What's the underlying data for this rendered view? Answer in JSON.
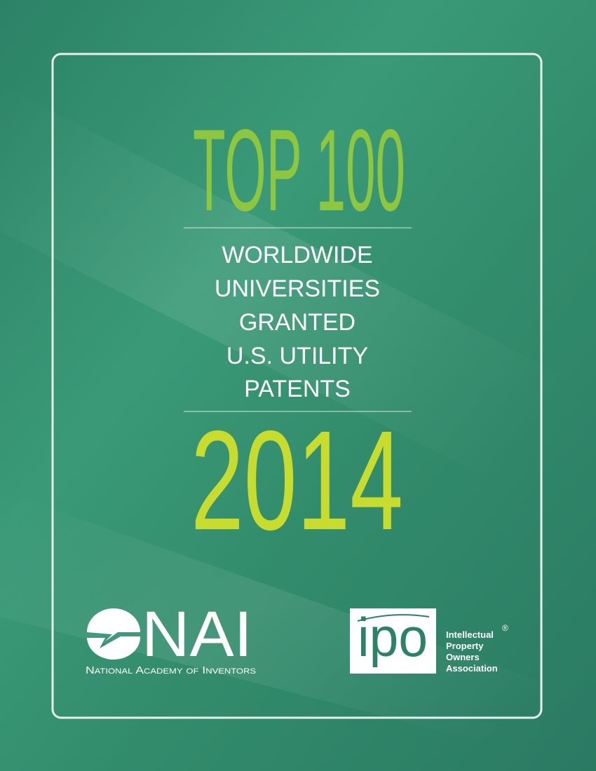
{
  "cover": {
    "title": "TOP 100",
    "subtitle_lines": [
      "WORLDWIDE",
      "UNIVERSITIES",
      "GRANTED",
      "U.S. UTILITY",
      "PATENTS"
    ],
    "year": "2014",
    "logos": {
      "nai": {
        "mark": "NAI",
        "name": "National Academy of Inventors"
      },
      "ipo": {
        "mark": "ipo",
        "name_lines": [
          "Intellectual",
          "Property",
          "Owners",
          "Association"
        ],
        "registered": "®"
      }
    }
  }
}
